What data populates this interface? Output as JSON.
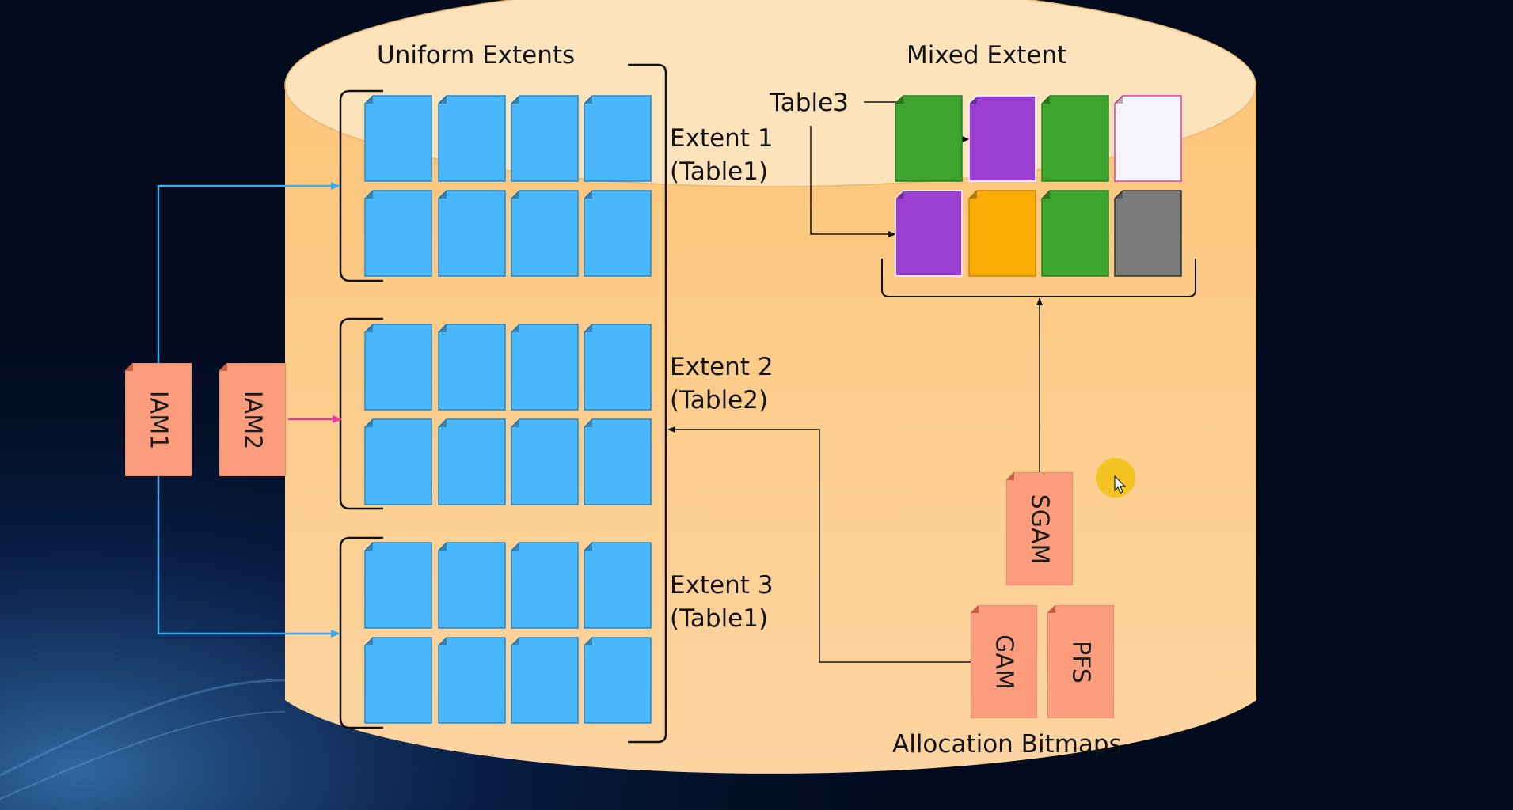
{
  "titles": {
    "uniform": "Uniform Extents",
    "mixed": "Mixed Extent",
    "bitmaps": "Allocation Bitmaps"
  },
  "extents": [
    {
      "name": "Extent 1",
      "table": "(Table1)"
    },
    {
      "name": "Extent 2",
      "table": "(Table2)"
    },
    {
      "name": "Extent 3",
      "table": "(Table1)"
    }
  ],
  "table3_label": "Table3",
  "iam_pages": [
    "IAM1",
    "IAM2"
  ],
  "bitmap_pages": {
    "sgam": "SGAM",
    "gam": "GAM",
    "pfs": "PFS"
  },
  "mixed_pages": [
    "green",
    "purple",
    "green",
    "white",
    "purple",
    "orange",
    "green",
    "gray"
  ],
  "colors": {
    "cylinder_body": "#fcc77c",
    "cylinder_top": "#fde3bc",
    "uniform_page": "#48b7fc",
    "uniform_page_border": "#2a87c4",
    "green": "#3da42d",
    "purple": "#9a3fd2",
    "white": "#f6f4f8",
    "orange": "#fbad05",
    "gray": "#7b7b7b",
    "bitmap_page": "#fb9d7c",
    "iam_arrow_blue": "#3fa9f0",
    "iam_arrow_pink": "#e8389c"
  }
}
